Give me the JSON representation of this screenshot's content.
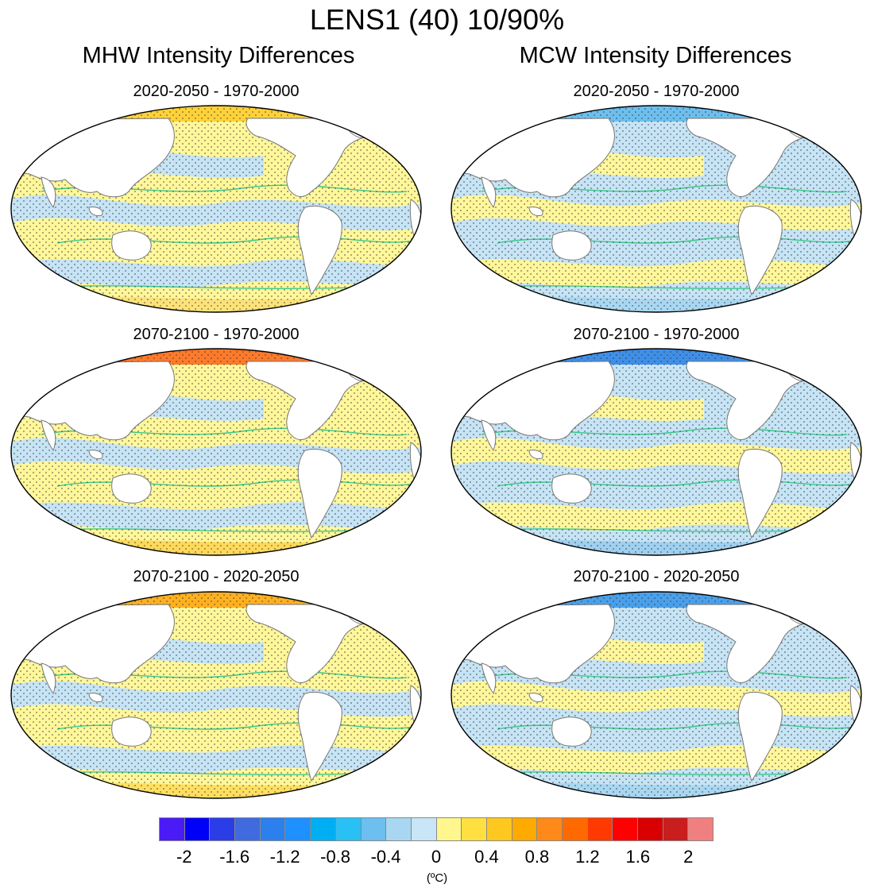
{
  "title": "LENS1 (40) 10/90%",
  "columns": [
    {
      "title": "MHW Intensity Differences"
    },
    {
      "title": "MCW Intensity Differences"
    }
  ],
  "rows": [
    {
      "subtitle": "2020-2050 - 1970-2000"
    },
    {
      "subtitle": "2070-2100 - 1970-2000"
    },
    {
      "subtitle": "2070-2100 - 2020-2050"
    }
  ],
  "colorbar": {
    "colors": [
      "#4a1bf5",
      "#0000f8",
      "#2b3de6",
      "#3f6bdf",
      "#2b80ee",
      "#1e90ff",
      "#00aef4",
      "#29c1f5",
      "#6cbfee",
      "#a9d7f1",
      "#c8e6f5",
      "#fff78e",
      "#ffe040",
      "#ffc820",
      "#ffaa00",
      "#ff8a1a",
      "#ff6a00",
      "#ff3a00",
      "#ff0000",
      "#d80000",
      "#c81e1e",
      "#f08080"
    ],
    "tick_labels": [
      "-2",
      "-1.6",
      "-1.2",
      "-0.8",
      "-0.4",
      "0",
      "0.4",
      "0.8",
      "1.2",
      "1.6",
      "2"
    ],
    "unit": "(ºC)"
  }
}
